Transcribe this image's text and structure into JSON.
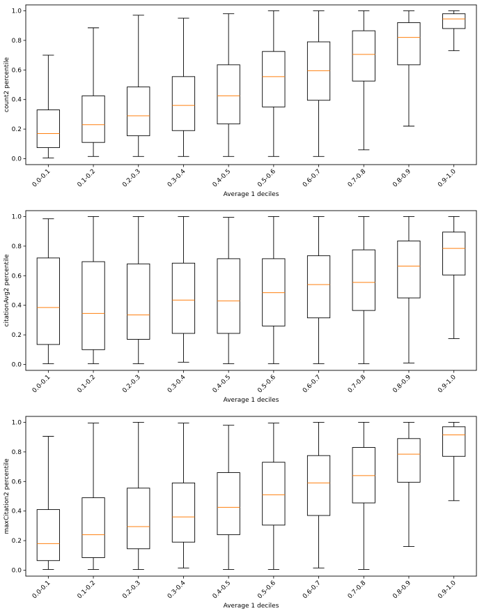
{
  "chart_data": [
    {
      "type": "box",
      "xlabel": "Average 1 deciles",
      "ylabel": "count2 percentile",
      "ylim": [
        -0.04,
        1.04
      ],
      "yticks": [
        "0.0",
        "0.2",
        "0.4",
        "0.6",
        "0.8",
        "1.0"
      ],
      "categories": [
        "0.0-0.1",
        "0.1-0.2",
        "0.2-0.3",
        "0.3-0.4",
        "0.4-0.5",
        "0.5-0.6",
        "0.6-0.7",
        "0.7-0.8",
        "0.8-0.9",
        "0.9-1.0"
      ],
      "boxes": [
        {
          "min": 0.005,
          "q1": 0.075,
          "median": 0.17,
          "q3": 0.33,
          "max": 0.7
        },
        {
          "min": 0.015,
          "q1": 0.11,
          "median": 0.23,
          "q3": 0.425,
          "max": 0.885
        },
        {
          "min": 0.015,
          "q1": 0.155,
          "median": 0.29,
          "q3": 0.485,
          "max": 0.97
        },
        {
          "min": 0.015,
          "q1": 0.19,
          "median": 0.36,
          "q3": 0.555,
          "max": 0.95
        },
        {
          "min": 0.015,
          "q1": 0.235,
          "median": 0.425,
          "q3": 0.635,
          "max": 0.98
        },
        {
          "min": 0.015,
          "q1": 0.35,
          "median": 0.555,
          "q3": 0.725,
          "max": 1.0
        },
        {
          "min": 0.015,
          "q1": 0.395,
          "median": 0.595,
          "q3": 0.79,
          "max": 1.0
        },
        {
          "min": 0.06,
          "q1": 0.525,
          "median": 0.705,
          "q3": 0.865,
          "max": 1.0
        },
        {
          "min": 0.22,
          "q1": 0.635,
          "median": 0.82,
          "q3": 0.92,
          "max": 1.0
        },
        {
          "min": 0.73,
          "q1": 0.88,
          "median": 0.945,
          "q3": 0.98,
          "max": 1.0
        }
      ]
    },
    {
      "type": "box",
      "xlabel": "Average 1 deciles",
      "ylabel": "citationAvg2 percentile",
      "ylim": [
        -0.04,
        1.04
      ],
      "yticks": [
        "0.0",
        "0.2",
        "0.4",
        "0.6",
        "0.8",
        "1.0"
      ],
      "categories": [
        "0.0-0.1",
        "0.1-0.2",
        "0.2-0.3",
        "0.3-0.4",
        "0.4-0.5",
        "0.5-0.6",
        "0.6-0.7",
        "0.7-0.8",
        "0.8-0.9",
        "0.9-1.0"
      ],
      "boxes": [
        {
          "min": 0.005,
          "q1": 0.135,
          "median": 0.385,
          "q3": 0.72,
          "max": 0.985
        },
        {
          "min": 0.005,
          "q1": 0.1,
          "median": 0.345,
          "q3": 0.695,
          "max": 1.0
        },
        {
          "min": 0.005,
          "q1": 0.17,
          "median": 0.335,
          "q3": 0.68,
          "max": 1.0
        },
        {
          "min": 0.015,
          "q1": 0.21,
          "median": 0.435,
          "q3": 0.685,
          "max": 1.0
        },
        {
          "min": 0.005,
          "q1": 0.21,
          "median": 0.43,
          "q3": 0.715,
          "max": 0.995
        },
        {
          "min": 0.005,
          "q1": 0.26,
          "median": 0.485,
          "q3": 0.715,
          "max": 1.0
        },
        {
          "min": 0.005,
          "q1": 0.315,
          "median": 0.54,
          "q3": 0.735,
          "max": 1.0
        },
        {
          "min": 0.005,
          "q1": 0.365,
          "median": 0.555,
          "q3": 0.775,
          "max": 1.0
        },
        {
          "min": 0.01,
          "q1": 0.45,
          "median": 0.665,
          "q3": 0.835,
          "max": 1.0
        },
        {
          "min": 0.175,
          "q1": 0.605,
          "median": 0.785,
          "q3": 0.895,
          "max": 1.0
        }
      ]
    },
    {
      "type": "box",
      "xlabel": "Average 1 deciles",
      "ylabel": "maxCitation2 percentile",
      "ylim": [
        -0.04,
        1.04
      ],
      "yticks": [
        "0.0",
        "0.2",
        "0.4",
        "0.6",
        "0.8",
        "1.0"
      ],
      "categories": [
        "0.0-0.1",
        "0.1-0.2",
        "0.2-0.3",
        "0.3-0.4",
        "0.4-0.5",
        "0.5-0.6",
        "0.6-0.7",
        "0.7-0.8",
        "0.8-0.9",
        "0.9-1.0"
      ],
      "boxes": [
        {
          "min": 0.005,
          "q1": 0.065,
          "median": 0.18,
          "q3": 0.41,
          "max": 0.905
        },
        {
          "min": 0.005,
          "q1": 0.085,
          "median": 0.24,
          "q3": 0.49,
          "max": 0.995
        },
        {
          "min": 0.005,
          "q1": 0.145,
          "median": 0.295,
          "q3": 0.555,
          "max": 1.0
        },
        {
          "min": 0.015,
          "q1": 0.19,
          "median": 0.36,
          "q3": 0.59,
          "max": 0.995
        },
        {
          "min": 0.005,
          "q1": 0.24,
          "median": 0.425,
          "q3": 0.66,
          "max": 0.98
        },
        {
          "min": 0.005,
          "q1": 0.305,
          "median": 0.51,
          "q3": 0.73,
          "max": 0.995
        },
        {
          "min": 0.015,
          "q1": 0.37,
          "median": 0.59,
          "q3": 0.775,
          "max": 1.0
        },
        {
          "min": 0.005,
          "q1": 0.455,
          "median": 0.64,
          "q3": 0.83,
          "max": 1.0
        },
        {
          "min": 0.16,
          "q1": 0.595,
          "median": 0.785,
          "q3": 0.89,
          "max": 1.0
        },
        {
          "min": 0.47,
          "q1": 0.77,
          "median": 0.915,
          "q3": 0.97,
          "max": 1.0
        }
      ]
    }
  ]
}
